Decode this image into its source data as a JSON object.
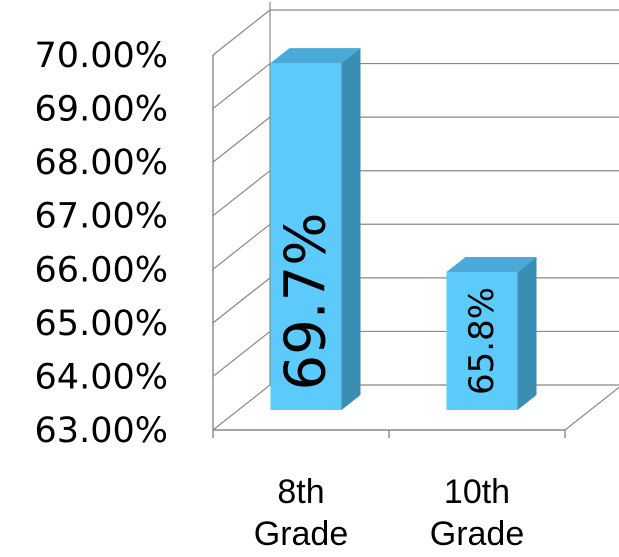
{
  "chart_data": {
    "type": "bar",
    "categories": [
      [
        "8th",
        "Grade"
      ],
      [
        "10th",
        "Grade"
      ]
    ],
    "values": [
      69.7,
      65.8
    ],
    "data_labels": [
      "69.7%",
      "65.8%"
    ],
    "ylim": [
      63,
      70
    ],
    "yticks": [
      {
        "value": 70,
        "label": "70.00%"
      },
      {
        "value": 69,
        "label": "69.00%"
      },
      {
        "value": 68,
        "label": "68.00%"
      },
      {
        "value": 67,
        "label": "67.00%"
      },
      {
        "value": 66,
        "label": "66.00%"
      },
      {
        "value": 65,
        "label": "65.00%"
      },
      {
        "value": 64,
        "label": "64.00%"
      },
      {
        "value": 63,
        "label": "63.00%"
      }
    ],
    "grid": true,
    "legend": "none",
    "style": "3d-column",
    "colors": {
      "bar_front": "#5ccafa",
      "bar_side": "#3a8db3",
      "bar_top": "#4aa9d6",
      "grid": "#888888"
    }
  }
}
